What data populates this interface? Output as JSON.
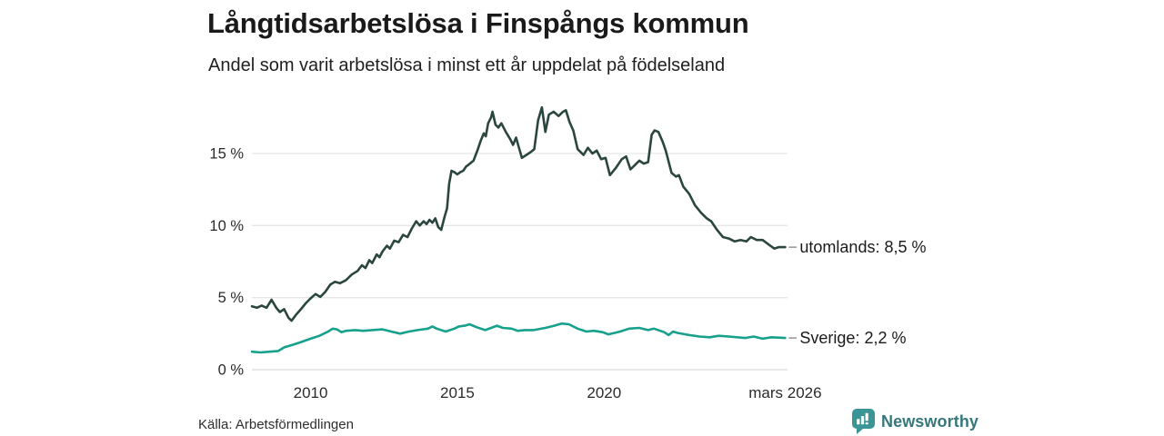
{
  "chart_data": {
    "type": "line",
    "title": "Långtidsarbetslösa i Finspångs kommun",
    "subtitle": "Andel som varit arbetslösa i minst ett år uppdelat på födelseland",
    "grid": true,
    "legend_position": "end-of-line-labels",
    "xlim": [
      2008.0,
      2026.25
    ],
    "ylim": [
      0,
      18.5
    ],
    "yticks": [
      {
        "value": 0,
        "label": "0 %"
      },
      {
        "value": 5,
        "label": "5 %"
      },
      {
        "value": 10,
        "label": "10 %"
      },
      {
        "value": 15,
        "label": "15 %"
      }
    ],
    "xticks": [
      {
        "x": 2010,
        "label": "2010"
      },
      {
        "x": 2015,
        "label": "2015"
      },
      {
        "x": 2020,
        "label": "2020"
      },
      {
        "x": 2026.17,
        "label": "mars 2026"
      }
    ],
    "series": [
      {
        "name": "utomlands",
        "end_label": "utomlands: 8,5 %",
        "end_value": "8,5 %",
        "color_key": "utomlands",
        "points": [
          [
            2008.0,
            4.4
          ],
          [
            2008.17,
            4.3
          ],
          [
            2008.33,
            4.45
          ],
          [
            2008.5,
            4.3
          ],
          [
            2008.67,
            4.85
          ],
          [
            2008.83,
            4.3
          ],
          [
            2008.95,
            4.0
          ],
          [
            2009.1,
            4.2
          ],
          [
            2009.25,
            3.6
          ],
          [
            2009.35,
            3.4
          ],
          [
            2009.5,
            3.8
          ],
          [
            2009.67,
            4.2
          ],
          [
            2009.83,
            4.6
          ],
          [
            2010.0,
            4.95
          ],
          [
            2010.17,
            5.25
          ],
          [
            2010.33,
            5.05
          ],
          [
            2010.5,
            5.4
          ],
          [
            2010.67,
            5.9
          ],
          [
            2010.83,
            6.1
          ],
          [
            2011.0,
            6.0
          ],
          [
            2011.2,
            6.2
          ],
          [
            2011.4,
            6.6
          ],
          [
            2011.6,
            6.85
          ],
          [
            2011.75,
            7.25
          ],
          [
            2011.87,
            7.05
          ],
          [
            2012.0,
            7.6
          ],
          [
            2012.1,
            7.4
          ],
          [
            2012.25,
            8.0
          ],
          [
            2012.35,
            7.8
          ],
          [
            2012.45,
            8.2
          ],
          [
            2012.6,
            8.6
          ],
          [
            2012.7,
            8.4
          ],
          [
            2012.85,
            8.95
          ],
          [
            2013.0,
            8.85
          ],
          [
            2013.15,
            9.35
          ],
          [
            2013.3,
            9.2
          ],
          [
            2013.45,
            9.8
          ],
          [
            2013.6,
            10.3
          ],
          [
            2013.72,
            10.0
          ],
          [
            2013.85,
            10.3
          ],
          [
            2013.95,
            10.1
          ],
          [
            2014.05,
            10.4
          ],
          [
            2014.15,
            10.2
          ],
          [
            2014.25,
            10.5
          ],
          [
            2014.35,
            9.9
          ],
          [
            2014.45,
            9.7
          ],
          [
            2014.55,
            10.5
          ],
          [
            2014.65,
            11.2
          ],
          [
            2014.72,
            12.9
          ],
          [
            2014.8,
            13.8
          ],
          [
            2014.9,
            13.7
          ],
          [
            2015.0,
            13.55
          ],
          [
            2015.1,
            13.7
          ],
          [
            2015.2,
            13.8
          ],
          [
            2015.3,
            14.1
          ],
          [
            2015.4,
            14.25
          ],
          [
            2015.55,
            14.5
          ],
          [
            2015.7,
            15.3
          ],
          [
            2015.8,
            15.9
          ],
          [
            2015.9,
            16.4
          ],
          [
            2015.97,
            16.2
          ],
          [
            2016.05,
            17.1
          ],
          [
            2016.15,
            17.5
          ],
          [
            2016.2,
            17.9
          ],
          [
            2016.3,
            17.0
          ],
          [
            2016.4,
            16.8
          ],
          [
            2016.5,
            17.1
          ],
          [
            2016.65,
            16.5
          ],
          [
            2016.8,
            16.0
          ],
          [
            2016.9,
            15.6
          ],
          [
            2017.0,
            16.1
          ],
          [
            2017.1,
            15.4
          ],
          [
            2017.2,
            14.7
          ],
          [
            2017.35,
            14.9
          ],
          [
            2017.5,
            15.1
          ],
          [
            2017.62,
            15.3
          ],
          [
            2017.75,
            17.3
          ],
          [
            2017.88,
            18.2
          ],
          [
            2018.0,
            16.5
          ],
          [
            2018.12,
            17.7
          ],
          [
            2018.28,
            17.9
          ],
          [
            2018.45,
            17.6
          ],
          [
            2018.6,
            17.9
          ],
          [
            2018.7,
            18.0
          ],
          [
            2018.82,
            17.2
          ],
          [
            2018.95,
            16.6
          ],
          [
            2019.1,
            15.3
          ],
          [
            2019.3,
            14.9
          ],
          [
            2019.45,
            15.4
          ],
          [
            2019.6,
            15.0
          ],
          [
            2019.75,
            15.2
          ],
          [
            2019.9,
            14.6
          ],
          [
            2020.05,
            14.7
          ],
          [
            2020.2,
            13.5
          ],
          [
            2020.4,
            14.0
          ],
          [
            2020.6,
            14.6
          ],
          [
            2020.75,
            14.8
          ],
          [
            2020.9,
            13.9
          ],
          [
            2021.05,
            14.2
          ],
          [
            2021.2,
            14.5
          ],
          [
            2021.35,
            14.3
          ],
          [
            2021.5,
            14.4
          ],
          [
            2021.62,
            16.3
          ],
          [
            2021.72,
            16.6
          ],
          [
            2021.85,
            16.5
          ],
          [
            2022.0,
            15.8
          ],
          [
            2022.1,
            15.2
          ],
          [
            2022.3,
            13.65
          ],
          [
            2022.45,
            13.4
          ],
          [
            2022.55,
            13.5
          ],
          [
            2022.7,
            12.7
          ],
          [
            2022.9,
            12.2
          ],
          [
            2023.1,
            11.4
          ],
          [
            2023.3,
            10.9
          ],
          [
            2023.5,
            10.5
          ],
          [
            2023.65,
            10.3
          ],
          [
            2023.85,
            9.7
          ],
          [
            2024.05,
            9.2
          ],
          [
            2024.25,
            9.1
          ],
          [
            2024.45,
            8.9
          ],
          [
            2024.65,
            9.0
          ],
          [
            2024.85,
            8.9
          ],
          [
            2025.0,
            9.2
          ],
          [
            2025.2,
            9.0
          ],
          [
            2025.4,
            9.0
          ],
          [
            2025.6,
            8.7
          ],
          [
            2025.8,
            8.4
          ],
          [
            2025.95,
            8.5
          ],
          [
            2026.17,
            8.5
          ]
        ]
      },
      {
        "name": "Sverige",
        "end_label": "Sverige: 2,2 %",
        "end_value": "2,2 %",
        "color_key": "sverige",
        "points": [
          [
            2008.0,
            1.25
          ],
          [
            2008.3,
            1.2
          ],
          [
            2008.6,
            1.25
          ],
          [
            2008.9,
            1.3
          ],
          [
            2009.1,
            1.55
          ],
          [
            2009.35,
            1.7
          ],
          [
            2009.65,
            1.9
          ],
          [
            2010.0,
            2.15
          ],
          [
            2010.3,
            2.35
          ],
          [
            2010.6,
            2.65
          ],
          [
            2010.75,
            2.85
          ],
          [
            2010.9,
            2.8
          ],
          [
            2011.05,
            2.6
          ],
          [
            2011.2,
            2.7
          ],
          [
            2011.5,
            2.75
          ],
          [
            2011.8,
            2.7
          ],
          [
            2012.1,
            2.75
          ],
          [
            2012.45,
            2.8
          ],
          [
            2012.75,
            2.65
          ],
          [
            2013.05,
            2.5
          ],
          [
            2013.35,
            2.65
          ],
          [
            2013.65,
            2.75
          ],
          [
            2014.0,
            2.85
          ],
          [
            2014.15,
            3.0
          ],
          [
            2014.3,
            2.85
          ],
          [
            2014.6,
            2.65
          ],
          [
            2014.9,
            2.85
          ],
          [
            2015.05,
            3.0
          ],
          [
            2015.25,
            3.05
          ],
          [
            2015.42,
            3.15
          ],
          [
            2015.65,
            2.95
          ],
          [
            2015.95,
            2.75
          ],
          [
            2016.15,
            2.9
          ],
          [
            2016.35,
            3.05
          ],
          [
            2016.55,
            2.9
          ],
          [
            2016.85,
            2.85
          ],
          [
            2017.05,
            2.7
          ],
          [
            2017.3,
            2.75
          ],
          [
            2017.6,
            2.75
          ],
          [
            2018.0,
            2.9
          ],
          [
            2018.3,
            3.05
          ],
          [
            2018.55,
            3.2
          ],
          [
            2018.8,
            3.15
          ],
          [
            2019.1,
            2.85
          ],
          [
            2019.4,
            2.65
          ],
          [
            2019.65,
            2.7
          ],
          [
            2019.95,
            2.6
          ],
          [
            2020.15,
            2.45
          ],
          [
            2020.55,
            2.65
          ],
          [
            2020.85,
            2.85
          ],
          [
            2021.2,
            2.9
          ],
          [
            2021.5,
            2.75
          ],
          [
            2021.7,
            2.85
          ],
          [
            2022.05,
            2.6
          ],
          [
            2022.2,
            2.4
          ],
          [
            2022.35,
            2.65
          ],
          [
            2022.5,
            2.55
          ],
          [
            2022.9,
            2.4
          ],
          [
            2023.25,
            2.3
          ],
          [
            2023.6,
            2.25
          ],
          [
            2023.9,
            2.35
          ],
          [
            2024.25,
            2.3
          ],
          [
            2024.8,
            2.2
          ],
          [
            2025.1,
            2.3
          ],
          [
            2025.4,
            2.15
          ],
          [
            2025.7,
            2.25
          ],
          [
            2026.17,
            2.2
          ]
        ]
      }
    ]
  },
  "colors": {
    "utomlands": "#2b463f",
    "sverige": "#17a08c",
    "grid": "#e7e7e7",
    "grid_zero": "#dadada",
    "tick_text": "#2b2b2b",
    "label_text": "#1a1a1a",
    "connector_dash": "#9a9a9a",
    "brand_icon": "#3b9596",
    "brand_text": "#35787c"
  },
  "footer": {
    "source": "Källa: Arbetsförmedlingen",
    "brand": "Newsworthy"
  }
}
